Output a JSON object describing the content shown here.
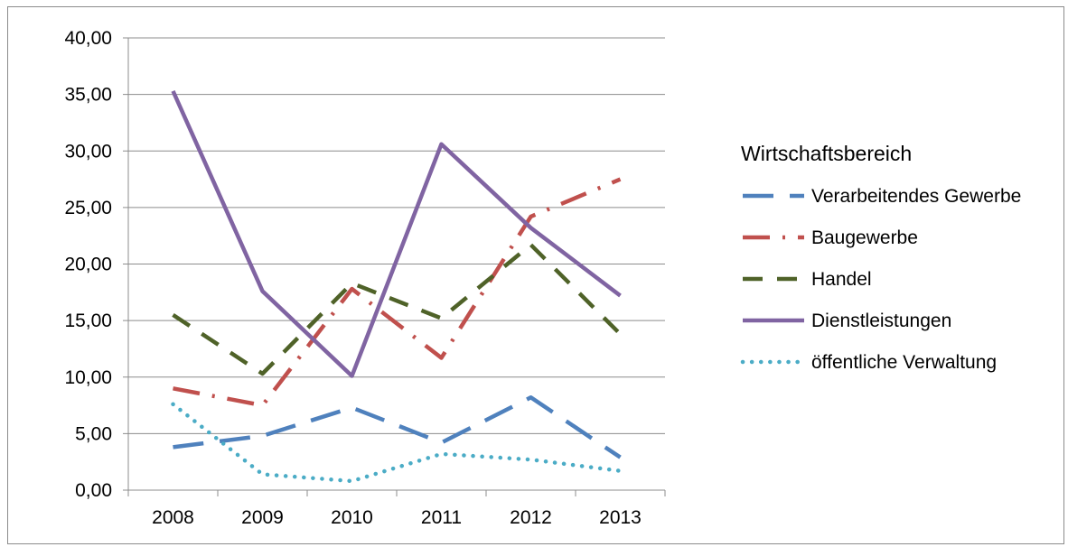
{
  "chart_data": {
    "type": "line",
    "categories": [
      "2008",
      "2009",
      "2010",
      "2011",
      "2012",
      "2013"
    ],
    "ylim": [
      0,
      40
    ],
    "yticks": [
      "0,00",
      "5,00",
      "10,00",
      "15,00",
      "20,00",
      "25,00",
      "30,00",
      "35,00",
      "40,00"
    ],
    "grid": true,
    "legend_title": "Wirtschaftsbereich",
    "legend_position": "right",
    "series": [
      {
        "name": "Verarbeitendes Gewerbe",
        "color": "#4F81BD",
        "style": "long-dash",
        "values": [
          3.8,
          4.8,
          7.3,
          4.2,
          8.2,
          2.9
        ]
      },
      {
        "name": "Baugewerbe",
        "color": "#C0504D",
        "style": "dash-dot",
        "values": [
          9.0,
          7.5,
          17.8,
          11.7,
          24.2,
          27.5
        ]
      },
      {
        "name": "Handel",
        "color": "#4F6228",
        "style": "dash",
        "values": [
          15.5,
          10.3,
          18.3,
          15.2,
          21.7,
          13.8
        ]
      },
      {
        "name": "Dienstleistungen",
        "color": "#8064A2",
        "style": "solid",
        "values": [
          35.3,
          17.6,
          10.1,
          30.6,
          23.2,
          17.2
        ]
      },
      {
        "name": "öffentliche Verwaltung",
        "color": "#4BACC6",
        "style": "dot",
        "values": [
          7.6,
          1.4,
          0.8,
          3.2,
          2.7,
          1.7
        ]
      }
    ]
  }
}
